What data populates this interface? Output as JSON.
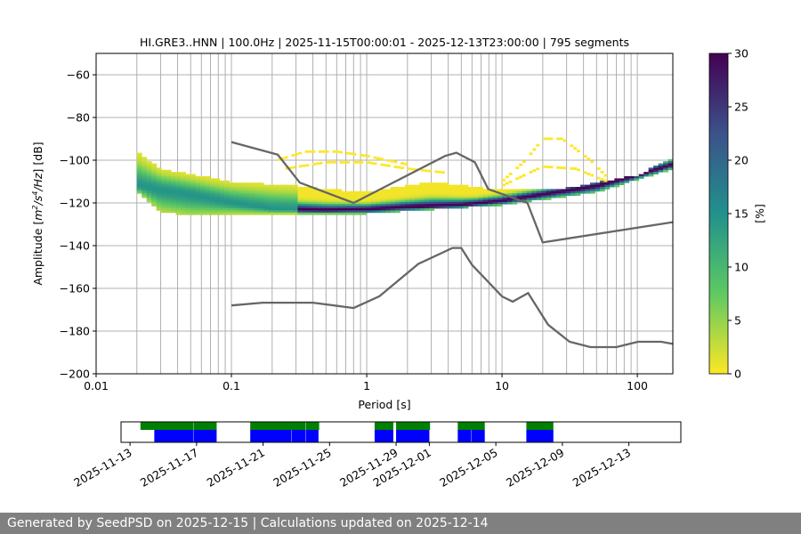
{
  "chart_data": {
    "type": "heatmap",
    "title": "HI.GRE3..HNN | 100.0Hz | 2025-11-15T00:00:01 - 2025-12-13T23:00:00 | 795 segments",
    "xlabel": "Period [s]",
    "ylabel_parts": [
      "Amplitude [",
      "m",
      "2",
      "/s",
      "4",
      "/Hz",
      "] [dB]"
    ],
    "x_scale": "log",
    "xlim": [
      0.01,
      183
    ],
    "ylim": [
      -200,
      -50
    ],
    "x_ticks": [
      0.01,
      0.1,
      1,
      10,
      100
    ],
    "x_tick_labels": [
      "0.01",
      "0.1",
      "1",
      "10",
      "100"
    ],
    "y_ticks": [
      -60,
      -80,
      -100,
      -120,
      -140,
      -160,
      -180,
      -200
    ],
    "y_tick_labels": [
      "−60",
      "−80",
      "−100",
      "−120",
      "−140",
      "−160",
      "−180",
      "−200"
    ],
    "grid": true,
    "colormap": "viridis_r",
    "colorbar": {
      "label": "[%]",
      "range": [
        0,
        30
      ],
      "ticks": [
        0,
        5,
        10,
        15,
        20,
        25,
        30
      ],
      "tick_labels": [
        "0",
        "5",
        "10",
        "15",
        "20",
        "25",
        "30"
      ]
    },
    "psd_distribution": {
      "period_range": [
        0.02,
        183
      ],
      "mode": [
        [
          0.02,
          -112
        ],
        [
          0.05,
          -116
        ],
        [
          0.1,
          -120
        ],
        [
          0.2,
          -123
        ],
        [
          0.5,
          -123.5
        ],
        [
          1,
          -123
        ],
        [
          2,
          -122
        ],
        [
          5,
          -121
        ],
        [
          10,
          -119
        ],
        [
          20,
          -116
        ],
        [
          50,
          -112
        ],
        [
          100,
          -107
        ],
        [
          183,
          -102
        ]
      ],
      "lower": [
        [
          0.02,
          -115
        ],
        [
          0.03,
          -124
        ],
        [
          0.05,
          -126
        ],
        [
          0.1,
          -125
        ],
        [
          1,
          -125
        ],
        [
          10,
          -121
        ],
        [
          50,
          -115
        ],
        [
          183,
          -104
        ]
      ],
      "upper": [
        [
          0.02,
          -96
        ],
        [
          0.03,
          -104
        ],
        [
          0.1,
          -110
        ],
        [
          0.3,
          -112
        ],
        [
          1,
          -115
        ],
        [
          3,
          -110
        ],
        [
          10,
          -114
        ],
        [
          30,
          -113
        ],
        [
          100,
          -107
        ],
        [
          183,
          -99
        ]
      ],
      "sparse_arcs": [
        [
          [
            0.22,
            -100
          ],
          [
            0.35,
            -96
          ],
          [
            0.6,
            -96
          ],
          [
            1,
            -98
          ],
          [
            2,
            -102
          ]
        ],
        [
          [
            0.25,
            -104
          ],
          [
            0.5,
            -101
          ],
          [
            1,
            -101
          ],
          [
            2,
            -104
          ],
          [
            4,
            -106
          ]
        ],
        [
          [
            10,
            -110
          ],
          [
            15,
            -100
          ],
          [
            20,
            -90
          ],
          [
            28,
            -90
          ],
          [
            45,
            -100
          ],
          [
            60,
            -108
          ]
        ],
        [
          [
            10,
            -112
          ],
          [
            20,
            -103
          ],
          [
            35,
            -104
          ],
          [
            60,
            -110
          ]
        ]
      ]
    },
    "noise_models": [
      {
        "points": [
          [
            0.1,
            -91.5
          ],
          [
            0.22,
            -97.4
          ],
          [
            0.32,
            -110.5
          ],
          [
            0.8,
            -120
          ],
          [
            3.8,
            -98
          ],
          [
            4.6,
            -96.5
          ],
          [
            6.3,
            -101
          ],
          [
            7.9,
            -113.5
          ],
          [
            15.4,
            -120
          ],
          [
            20,
            -138.5
          ],
          [
            183,
            -129
          ]
        ]
      },
      {
        "points": [
          [
            0.1,
            -168
          ],
          [
            0.17,
            -166.7
          ],
          [
            0.4,
            -166.7
          ],
          [
            0.8,
            -169.2
          ],
          [
            1.24,
            -163.7
          ],
          [
            2.4,
            -148.6
          ],
          [
            4.3,
            -141.1
          ],
          [
            5,
            -141.1
          ],
          [
            6,
            -149
          ],
          [
            10,
            -163.8
          ],
          [
            12,
            -166.2
          ],
          [
            15.6,
            -162.2
          ],
          [
            21.9,
            -177
          ],
          [
            31.6,
            -185
          ],
          [
            45,
            -187.5
          ],
          [
            70,
            -187.5
          ],
          [
            101,
            -185
          ],
          [
            150,
            -185
          ],
          [
            183,
            -186
          ]
        ]
      }
    ],
    "noise_model_color": "#666666",
    "timeline": {
      "x_range": [
        "2025-11-12T11:00",
        "2025-12-16T03:00"
      ],
      "x_ticks": [
        "2025-11-13",
        "2025-11-17",
        "2025-11-21",
        "2025-11-25",
        "2025-11-29",
        "2025-12-01",
        "2025-12-05",
        "2025-12-09",
        "2025-12-13"
      ],
      "available_color": "#008000",
      "used_color": "#0000ff",
      "available": [
        [
          "2025-11-13T15:00",
          "2025-11-16T19:00"
        ],
        [
          "2025-11-16T19:30",
          "2025-11-18T05:00"
        ],
        [
          "2025-11-20T05:30",
          "2025-11-23T13:00"
        ],
        [
          "2025-11-23T13:30",
          "2025-11-24T09:00"
        ],
        [
          "2025-11-27T17:00",
          "2025-11-28T20:00"
        ],
        [
          "2025-11-29T00:00",
          "2025-12-01T01:00"
        ],
        [
          "2025-12-02T17:00",
          "2025-12-04T08:00"
        ],
        [
          "2025-12-06T20:00",
          "2025-12-08T11:00"
        ]
      ],
      "used": [
        [
          "2025-11-14T11:00",
          "2025-11-16T19:00"
        ],
        [
          "2025-11-16T19:30",
          "2025-11-18T05:00"
        ],
        [
          "2025-11-20T05:30",
          "2025-11-22T17:00"
        ],
        [
          "2025-11-22T17:30",
          "2025-11-23T13:00"
        ],
        [
          "2025-11-23T13:30",
          "2025-11-24T08:00"
        ],
        [
          "2025-11-27T17:00",
          "2025-11-28T20:00"
        ],
        [
          "2025-11-29T00:00",
          "2025-12-01T00:00"
        ],
        [
          "2025-12-02T17:00",
          "2025-12-03T12:00"
        ],
        [
          "2025-12-03T12:30",
          "2025-12-04T08:00"
        ],
        [
          "2025-12-06T20:00",
          "2025-12-08T11:00"
        ]
      ]
    }
  },
  "footer": {
    "text": "Generated by SeedPSD on 2025-12-15 | Calculations updated on 2025-12-14"
  }
}
